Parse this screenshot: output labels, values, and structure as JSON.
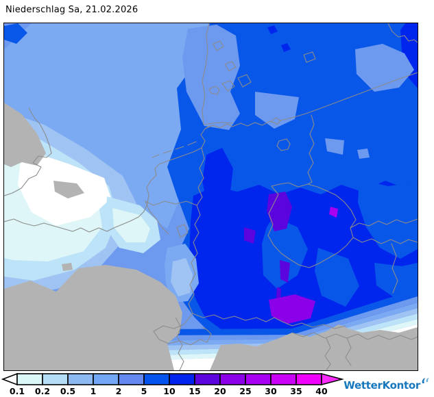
{
  "window": {
    "title": "Niederschlag Sa, 21.02.2026"
  },
  "map": {
    "frame_border_color": "#000000",
    "levels": {
      "none": "#ffffff",
      "l01": "#def6f7",
      "l02": "#bce3f7",
      "l05": "#9fc4f3",
      "l1": "#7baaf3",
      "l2": "#6d99ee",
      "l5": "#0857e8",
      "l10": "#0026ee",
      "l15": "#5b04dd",
      "l20": "#8b00e8",
      "l25": "#a800f0",
      "nodata": "#b3b3b3",
      "border": "#8c8c8c"
    }
  },
  "legend": {
    "tick_labels": [
      "0.1",
      "0.2",
      "0.5",
      "1",
      "2",
      "5",
      "10",
      "15",
      "20",
      "25",
      "30",
      "35",
      "40"
    ],
    "cell_colors": [
      "#dcf7f8",
      "#b4ddf6",
      "#8db9f2",
      "#71a7f5",
      "#6487f0",
      "#0353ee",
      "#0023f0",
      "#5b04dd",
      "#8b00e8",
      "#a800f0",
      "#cb00f7",
      "#ee00fb"
    ],
    "underflow_color": "#ffffff",
    "overflow_color": "#fb2cfb",
    "outline_color": "#000000",
    "label_color": "#000000"
  },
  "branding": {
    "name": "WetterKontor",
    "color": "#1878be",
    "icon_color_light": "#6fb3dc"
  }
}
